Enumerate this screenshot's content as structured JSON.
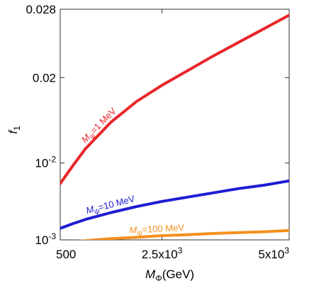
{
  "chart_data": {
    "type": "line",
    "title": "",
    "xlabel": {
      "main": "M",
      "sub": "Φ",
      "unit": "(GeV)"
    },
    "ylabel": {
      "main": "f",
      "sub": "1"
    },
    "xlim": [
      500,
      5000
    ],
    "ylim": [
      0.001,
      0.028
    ],
    "grid": false,
    "x_ticks": [
      {
        "value": 500,
        "label": "500",
        "sup": ""
      },
      {
        "value": 2500,
        "label": "2.5x10",
        "sup": "3"
      },
      {
        "value": 5000,
        "label": "5x10",
        "sup": "3"
      }
    ],
    "y_ticks": [
      {
        "value": 0.001,
        "label": "10",
        "sup": "-3"
      },
      {
        "value": 0.01,
        "label": "10",
        "sup": "-2"
      },
      {
        "value": 0.02,
        "label": "0.02",
        "sup": ""
      },
      {
        "value": 0.028,
        "label": "0.028",
        "sup": ""
      }
    ],
    "series": [
      {
        "name": "1 MeV",
        "label_main": "M",
        "label_sub": "ψ",
        "label_rest": "=1 MeV",
        "color": "#e8262a",
        "x": [
          500,
          750,
          1000,
          1500,
          2000,
          2500,
          3000,
          3500,
          4000,
          4500,
          5000
        ],
        "y": [
          0.0076,
          0.0097,
          0.0117,
          0.0148,
          0.0172,
          0.0191,
          0.0208,
          0.0225,
          0.0241,
          0.0257,
          0.0273
        ]
      },
      {
        "name": "10 MeV",
        "label_main": "M",
        "label_sub": "ψ",
        "label_rest": "=10 MeV",
        "color": "#1d1dd2",
        "x": [
          500,
          750,
          1000,
          1500,
          2000,
          2500,
          3000,
          3500,
          4000,
          4500,
          5000
        ],
        "y": [
          0.00235,
          0.0029,
          0.0034,
          0.0042,
          0.0049,
          0.0055,
          0.006,
          0.0065,
          0.007,
          0.0074,
          0.0079
        ]
      },
      {
        "name": "100 MeV",
        "label_main": "M",
        "label_sub": "ψ",
        "label_rest": "=100 MeV",
        "color": "#f5901e",
        "x": [
          750,
          1000,
          1500,
          2000,
          2500,
          3000,
          3500,
          4000,
          4500,
          5000
        ],
        "y": [
          0.0008,
          0.0009,
          0.00115,
          0.0013,
          0.0015,
          0.0016,
          0.00175,
          0.00185,
          0.00195,
          0.0021
        ]
      }
    ]
  }
}
